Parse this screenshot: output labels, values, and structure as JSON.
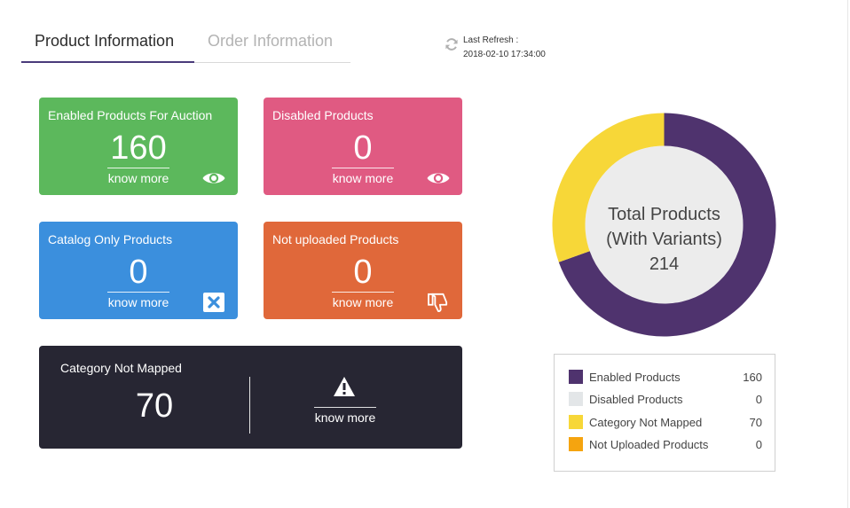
{
  "tabs": [
    {
      "label": "Product Information",
      "active": true
    },
    {
      "label": "Order Information",
      "active": false
    }
  ],
  "refresh": {
    "label": "Last Refresh :",
    "timestamp": "2018-02-10 17:34:00",
    "icon": "refresh-icon"
  },
  "cards": {
    "enabled_auction": {
      "title": "Enabled Products For Auction",
      "value": "160",
      "link": "know more",
      "icon": "eye-icon",
      "color": "#5cb85c"
    },
    "disabled": {
      "title": "Disabled Products",
      "value": "0",
      "link": "know more",
      "icon": "eye-icon",
      "color": "#e05a82"
    },
    "catalog_only": {
      "title": "Catalog Only Products",
      "value": "0",
      "link": "know more",
      "icon": "close-box-icon",
      "color": "#3b8fdd"
    },
    "not_uploaded": {
      "title": "Not uploaded Products",
      "value": "0",
      "link": "know more",
      "icon": "thumbs-down-icon",
      "color": "#e0683a"
    },
    "category_not_mapped": {
      "title": "Category Not Mapped",
      "value": "70",
      "link": "know more",
      "icon": "warning-icon",
      "color": "#272633"
    }
  },
  "donut": {
    "center_line1": "Total Products",
    "center_line2": "(With Variants)",
    "total": "214"
  },
  "chart_data": {
    "type": "pie",
    "categories": [
      "Enabled Products",
      "Disabled Products",
      "Category Not Mapped",
      "Not Uploaded Products"
    ],
    "values": [
      160,
      0,
      70,
      0
    ],
    "colors": [
      "#4f336e",
      "#e3e6e8",
      "#f7d738",
      "#f5a40f"
    ],
    "legend_position": "bottom"
  },
  "legend": [
    {
      "label": "Enabled Products",
      "value": "160",
      "color": "#4f336e"
    },
    {
      "label": "Disabled Products",
      "value": "0",
      "color": "#e3e6e8"
    },
    {
      "label": "Category Not Mapped",
      "value": "70",
      "color": "#f7d738"
    },
    {
      "label": "Not Uploaded Products",
      "value": "0",
      "color": "#f5a40f"
    }
  ]
}
